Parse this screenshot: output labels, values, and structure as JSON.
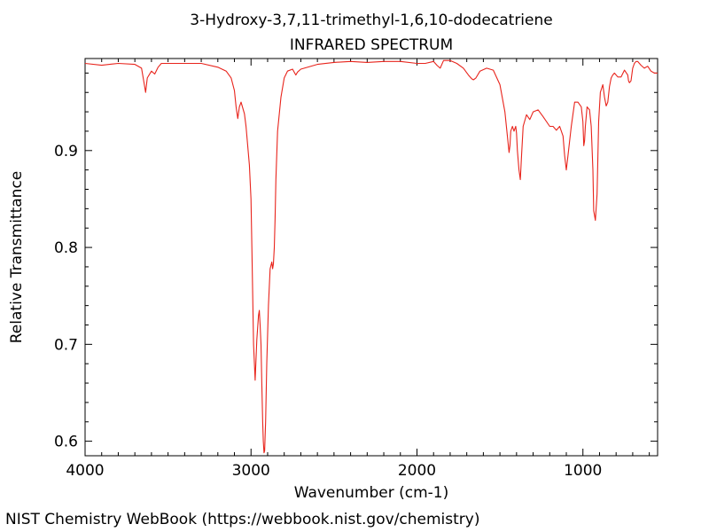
{
  "chart_data": {
    "type": "line",
    "title": "3-Hydroxy-3,7,11-trimethyl-1,6,10-dodecatriene",
    "subtitle": "INFRARED SPECTRUM",
    "xlabel": "Wavenumber (cm-1)",
    "ylabel": "Relative Transmittance",
    "xlim": [
      4000,
      550
    ],
    "ylim": [
      0.585,
      0.995
    ],
    "x_reversed": true,
    "grid": false,
    "xticks": [
      4000,
      3000,
      2000,
      1000
    ],
    "xtick_labels": [
      "4000",
      "3000",
      "2000",
      "1000"
    ],
    "yticks": [
      0.6,
      0.7,
      0.8,
      0.9
    ],
    "ytick_labels": [
      "0.6",
      "0.7",
      "0.8",
      "0.9"
    ],
    "series": [
      {
        "color": "#e8241c",
        "x": [
          4000,
          3900,
          3800,
          3700,
          3660,
          3645,
          3635,
          3625,
          3600,
          3580,
          3560,
          3540,
          3500,
          3400,
          3300,
          3200,
          3150,
          3120,
          3100,
          3090,
          3080,
          3070,
          3060,
          3040,
          3030,
          3020,
          3010,
          3000,
          2995,
          2985,
          2975,
          2965,
          2955,
          2950,
          2945,
          2940,
          2935,
          2930,
          2926,
          2922,
          2918,
          2912,
          2905,
          2895,
          2885,
          2875,
          2870,
          2865,
          2860,
          2855,
          2850,
          2840,
          2820,
          2800,
          2780,
          2750,
          2730,
          2720,
          2700,
          2600,
          2500,
          2400,
          2300,
          2200,
          2100,
          2000,
          1950,
          1900,
          1880,
          1860,
          1840,
          1800,
          1760,
          1720,
          1690,
          1670,
          1660,
          1645,
          1620,
          1580,
          1540,
          1500,
          1470,
          1455,
          1445,
          1440,
          1435,
          1425,
          1415,
          1405,
          1400,
          1395,
          1385,
          1377,
          1370,
          1360,
          1340,
          1320,
          1300,
          1270,
          1240,
          1200,
          1180,
          1160,
          1140,
          1120,
          1110,
          1100,
          1090,
          1070,
          1050,
          1030,
          1010,
          1000,
          995,
          990,
          985,
          975,
          960,
          950,
          940,
          935,
          925,
          915,
          905,
          895,
          880,
          870,
          860,
          850,
          840,
          830,
          820,
          810,
          790,
          770,
          750,
          730,
          725,
          720,
          710,
          700,
          690,
          680,
          670,
          650,
          630,
          610,
          590,
          570,
          550
        ],
        "y": [
          0.99,
          0.988,
          0.99,
          0.989,
          0.985,
          0.97,
          0.96,
          0.975,
          0.982,
          0.979,
          0.986,
          0.99,
          0.99,
          0.99,
          0.99,
          0.986,
          0.982,
          0.975,
          0.962,
          0.945,
          0.933,
          0.945,
          0.95,
          0.938,
          0.925,
          0.905,
          0.885,
          0.85,
          0.8,
          0.7,
          0.663,
          0.705,
          0.73,
          0.735,
          0.72,
          0.7,
          0.66,
          0.62,
          0.6,
          0.588,
          0.59,
          0.62,
          0.68,
          0.74,
          0.778,
          0.785,
          0.778,
          0.783,
          0.8,
          0.83,
          0.87,
          0.92,
          0.955,
          0.975,
          0.982,
          0.984,
          0.978,
          0.981,
          0.984,
          0.989,
          0.991,
          0.992,
          0.991,
          0.992,
          0.992,
          0.99,
          0.99,
          0.992,
          0.988,
          0.985,
          0.993,
          0.993,
          0.99,
          0.985,
          0.978,
          0.974,
          0.973,
          0.975,
          0.982,
          0.985,
          0.983,
          0.968,
          0.94,
          0.915,
          0.898,
          0.905,
          0.92,
          0.925,
          0.92,
          0.925,
          0.918,
          0.9,
          0.88,
          0.87,
          0.895,
          0.925,
          0.937,
          0.932,
          0.94,
          0.942,
          0.935,
          0.925,
          0.925,
          0.921,
          0.925,
          0.915,
          0.895,
          0.88,
          0.895,
          0.925,
          0.95,
          0.95,
          0.945,
          0.93,
          0.905,
          0.91,
          0.925,
          0.945,
          0.942,
          0.925,
          0.88,
          0.838,
          0.828,
          0.855,
          0.93,
          0.96,
          0.968,
          0.955,
          0.946,
          0.95,
          0.966,
          0.975,
          0.978,
          0.98,
          0.976,
          0.976,
          0.983,
          0.978,
          0.972,
          0.97,
          0.972,
          0.985,
          0.99,
          0.992,
          0.992,
          0.988,
          0.985,
          0.987,
          0.982,
          0.98,
          0.98
        ]
      }
    ]
  },
  "footer": {
    "text": "NIST Chemistry WebBook (https://webbook.nist.gov/chemistry)"
  }
}
